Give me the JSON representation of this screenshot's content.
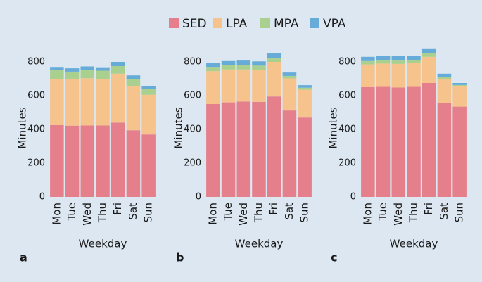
{
  "chart_data": [
    {
      "type": "bar",
      "stacked": true,
      "panel": "a",
      "xlabel": "Weekday",
      "ylabel": "Minutes",
      "categories": [
        "Mon",
        "Tue",
        "Wed",
        "Thu",
        "Fri",
        "Sat",
        "Sun"
      ],
      "ylim": [
        0,
        900
      ],
      "yticks": [
        0,
        200,
        400,
        600,
        800
      ],
      "grid": false,
      "series": [
        {
          "name": "SED",
          "color": "#e57f8c",
          "values": [
            425,
            422,
            423,
            423,
            440,
            395,
            370
          ]
        },
        {
          "name": "LPA",
          "color": "#f6c38d",
          "values": [
            275,
            275,
            280,
            277,
            290,
            260,
            235
          ]
        },
        {
          "name": "MPA",
          "color": "#a9d08e",
          "values": [
            50,
            45,
            50,
            48,
            45,
            45,
            35
          ]
        },
        {
          "name": "VPA",
          "color": "#67acd8",
          "values": [
            20,
            20,
            20,
            20,
            25,
            20,
            17
          ]
        }
      ]
    },
    {
      "type": "bar",
      "stacked": true,
      "panel": "b",
      "xlabel": "Weekday",
      "ylabel": "Minutes",
      "categories": [
        "Mon",
        "Tue",
        "Wed",
        "Thu",
        "Fri",
        "Sat",
        "Sun"
      ],
      "ylim": [
        0,
        900
      ],
      "yticks": [
        0,
        200,
        400,
        600,
        800
      ],
      "grid": false,
      "series": [
        {
          "color": "#e57f8c",
          "values": [
            550,
            560,
            565,
            563,
            595,
            512,
            470
          ]
        },
        {
          "color": "#f6c38d",
          "values": [
            195,
            195,
            190,
            190,
            205,
            190,
            165
          ]
        },
        {
          "color": "#a9d08e",
          "values": [
            25,
            25,
            25,
            25,
            25,
            15,
            12
          ]
        },
        {
          "color": "#67acd8",
          "values": [
            22,
            25,
            28,
            25,
            25,
            20,
            15
          ]
        }
      ]
    },
    {
      "type": "bar",
      "stacked": true,
      "panel": "c",
      "xlabel": "Weekday",
      "ylabel": "Minutes",
      "categories": [
        "Mon",
        "Tue",
        "Wed",
        "Thu",
        "Fri",
        "Sat",
        "Sun"
      ],
      "ylim": [
        0,
        900
      ],
      "yticks": [
        0,
        200,
        400,
        600,
        800
      ],
      "grid": false,
      "series": [
        {
          "color": "#e57f8c",
          "values": [
            650,
            652,
            648,
            652,
            675,
            558,
            535
          ]
        },
        {
          "color": "#f6c38d",
          "values": [
            135,
            138,
            140,
            140,
            155,
            140,
            120
          ]
        },
        {
          "color": "#a9d08e",
          "values": [
            20,
            20,
            20,
            18,
            20,
            12,
            8
          ]
        },
        {
          "color": "#67acd8",
          "values": [
            25,
            25,
            27,
            25,
            30,
            20,
            12
          ]
        }
      ]
    }
  ]
}
